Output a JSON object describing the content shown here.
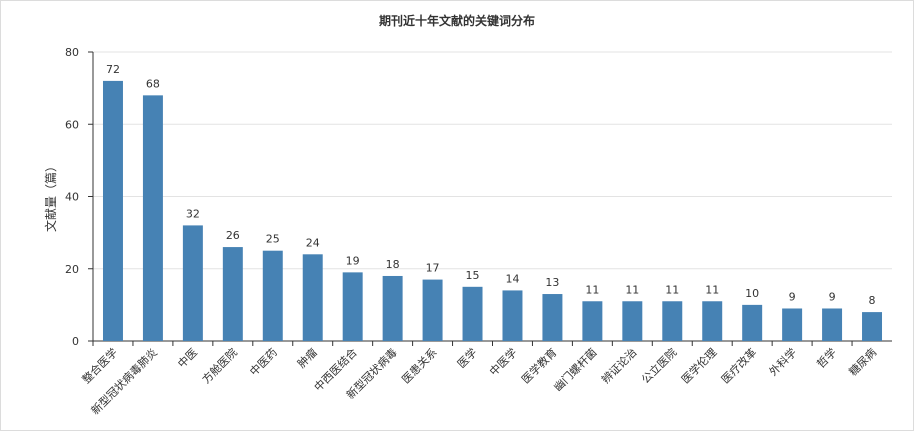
{
  "chart_data": {
    "type": "bar",
    "title": "期刊近十年文献的关键词分布",
    "xlabel": "",
    "ylabel": "文献量（篇）",
    "ylim": [
      0,
      80
    ],
    "yticks": [
      0,
      20,
      40,
      60,
      80
    ],
    "grid": true,
    "legend": "none",
    "bar_color": "#4682b4",
    "categories": [
      "整合医学",
      "新型冠状病毒肺炎",
      "中医",
      "方舱医院",
      "中医药",
      "肿瘤",
      "中西医结合",
      "新型冠状病毒",
      "医患关系",
      "医学",
      "中医学",
      "医学教育",
      "幽门螺杆菌",
      "辨证论治",
      "公立医院",
      "医学伦理",
      "医疗改革",
      "外科学",
      "哲学",
      "糖尿病"
    ],
    "values": [
      72,
      68,
      32,
      26,
      25,
      24,
      19,
      18,
      17,
      15,
      14,
      13,
      11,
      11,
      11,
      11,
      10,
      9,
      9,
      8
    ]
  }
}
